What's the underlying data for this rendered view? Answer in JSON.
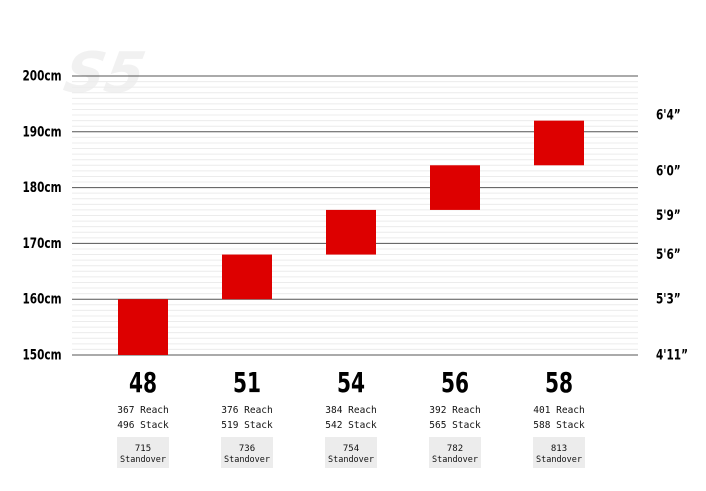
{
  "chart_data": {
    "type": "bar",
    "watermark": "S5",
    "y_unit": "cm",
    "ylim": [
      150,
      200
    ],
    "y_ticks": [
      "200cm",
      "190cm",
      "180cm",
      "170cm",
      "160cm",
      "150cm"
    ],
    "y_tick_values": [
      200,
      190,
      180,
      170,
      160,
      150
    ],
    "y2_ticks": [
      "6'4”",
      "6'0”",
      "5'9”",
      "5'6”",
      "5'3”",
      "4'11”"
    ],
    "y2_tick_values": [
      193,
      183,
      175,
      168,
      160,
      150
    ],
    "bar_color": "#dd0000",
    "grid": true,
    "sizes": [
      {
        "label": "48",
        "low": 150,
        "high": 160,
        "reach": "367 Reach",
        "stack": "496 Stack",
        "standover": "715",
        "standover_label": "Standover"
      },
      {
        "label": "51",
        "low": 160,
        "high": 168,
        "reach": "376 Reach",
        "stack": "519 Stack",
        "standover": "736",
        "standover_label": "Standover"
      },
      {
        "label": "54",
        "low": 168,
        "high": 176,
        "reach": "384 Reach",
        "stack": "542 Stack",
        "standover": "754",
        "standover_label": "Standover"
      },
      {
        "label": "56",
        "low": 176,
        "high": 184,
        "reach": "392 Reach",
        "stack": "565 Stack",
        "standover": "782",
        "standover_label": "Standover"
      },
      {
        "label": "58",
        "low": 184,
        "high": 192,
        "reach": "401 Reach",
        "stack": "588 Stack",
        "standover": "813",
        "standover_label": "Standover"
      }
    ]
  }
}
